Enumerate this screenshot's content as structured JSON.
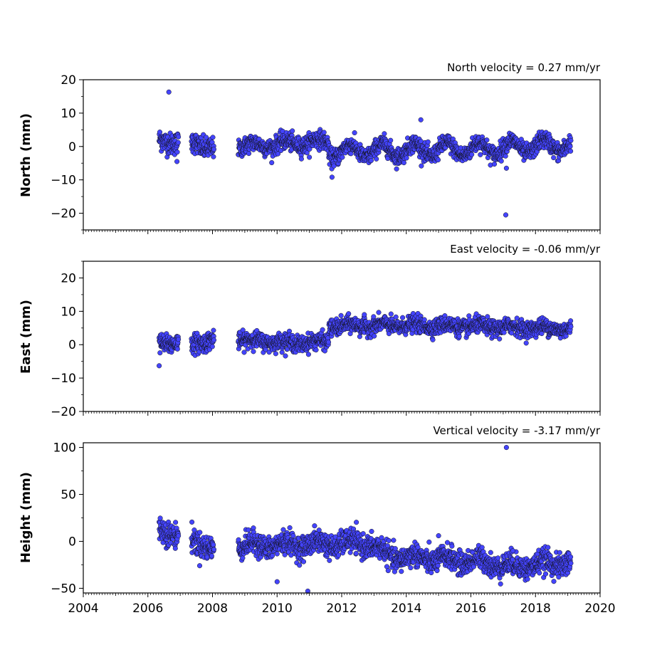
{
  "chart_data": [
    {
      "type": "scatter",
      "annotation": "North velocity = 0.27 mm/yr",
      "ylabel": "North (mm)",
      "xlim": [
        2004,
        2020
      ],
      "ylim": [
        -25,
        20
      ],
      "yticks": [
        20,
        10,
        0,
        -10,
        -20
      ],
      "ytick_labels": [
        "20",
        "10",
        "0",
        "−10",
        "−20"
      ],
      "series": [
        {
          "color": "#4444ff",
          "segments": [
            {
              "start": 2006.35,
              "end": 2006.95,
              "trend": [
                [
                  2006.35,
                  1.5
                ],
                [
                  2006.95,
                  1.5
                ]
              ],
              "amp": 0.8,
              "noise": 1.6
            },
            {
              "start": 2007.35,
              "end": 2008.05,
              "trend": [
                [
                  2007.35,
                  1.2
                ],
                [
                  2008.05,
                  -0.5
                ]
              ],
              "amp": 0.8,
              "noise": 1.6
            },
            {
              "start": 2008.8,
              "end": 2011.6,
              "trend": [
                [
                  2008.8,
                  0.0
                ],
                [
                  2011.6,
                  1.5
                ]
              ],
              "amp": 1.0,
              "noise": 1.3
            },
            {
              "start": 2011.6,
              "end": 2019.1,
              "trend": [
                [
                  2011.6,
                  -1.5
                ],
                [
                  2013.0,
                  -1.2
                ],
                [
                  2016.0,
                  -0.8
                ],
                [
                  2019.1,
                  0.5
                ]
              ],
              "amp": 2.0,
              "noise": 1.3
            }
          ],
          "outliers": [
            [
              2006.65,
              16.3
            ],
            [
              2006.9,
              -4.5
            ],
            [
              2011.7,
              -9.2
            ],
            [
              2014.45,
              8.0
            ],
            [
              2017.08,
              -20.5
            ],
            [
              2017.1,
              -6.5
            ]
          ]
        }
      ]
    },
    {
      "type": "scatter",
      "annotation": "East velocity = -0.06 mm/yr",
      "ylabel": "East (mm)",
      "xlim": [
        2004,
        2020
      ],
      "ylim": [
        -20,
        25
      ],
      "yticks": [
        20,
        10,
        0,
        -10,
        -20
      ],
      "ytick_labels": [
        "20",
        "10",
        "0",
        "−10",
        "−20"
      ],
      "series": [
        {
          "color": "#4444ff",
          "segments": [
            {
              "start": 2006.35,
              "end": 2006.95,
              "trend": [
                [
                  2006.35,
                  0.0
                ],
                [
                  2006.95,
                  1.0
                ]
              ],
              "amp": 0.6,
              "noise": 1.4
            },
            {
              "start": 2007.35,
              "end": 2008.05,
              "trend": [
                [
                  2007.35,
                  0.0
                ],
                [
                  2008.05,
                  2.0
                ]
              ],
              "amp": 0.6,
              "noise": 1.4
            },
            {
              "start": 2008.8,
              "end": 2011.6,
              "trend": [
                [
                  2008.8,
                  1.5
                ],
                [
                  2010.5,
                  0.5
                ],
                [
                  2011.6,
                  1.0
                ]
              ],
              "amp": 0.5,
              "noise": 1.2
            },
            {
              "start": 2011.6,
              "end": 2019.1,
              "trend": [
                [
                  2011.6,
                  5.5
                ],
                [
                  2014.0,
                  5.8
                ],
                [
                  2019.1,
                  4.8
                ]
              ],
              "amp": 0.6,
              "noise": 1.2
            }
          ],
          "outliers": [
            [
              2006.35,
              -6.3
            ],
            [
              2012.7,
              9.0
            ]
          ]
        }
      ]
    },
    {
      "type": "scatter",
      "annotation": "Vertical velocity = -3.17 mm/yr",
      "ylabel": "Height (mm)",
      "xlim": [
        2004,
        2020
      ],
      "ylim": [
        -55,
        105
      ],
      "yticks": [
        100,
        50,
        0,
        -50
      ],
      "ytick_labels": [
        "100",
        "50",
        "0",
        "−50"
      ],
      "xticks": [
        2004,
        2006,
        2008,
        2010,
        2012,
        2014,
        2016,
        2018,
        2020
      ],
      "xtick_labels": [
        "2004",
        "2006",
        "2008",
        "2010",
        "2012",
        "2014",
        "2016",
        "2018",
        "2020"
      ],
      "series": [
        {
          "color": "#4444ff",
          "segments": [
            {
              "start": 2006.35,
              "end": 2006.95,
              "trend": [
                [
                  2006.35,
                  12.0
                ],
                [
                  2006.95,
                  8.0
                ]
              ],
              "amp": 3.0,
              "noise": 6.5
            },
            {
              "start": 2007.35,
              "end": 2008.05,
              "trend": [
                [
                  2007.35,
                  0.0
                ],
                [
                  2008.05,
                  -6.0
                ]
              ],
              "amp": 3.0,
              "noise": 6.5
            },
            {
              "start": 2008.8,
              "end": 2019.1,
              "trend": [
                [
                  2008.8,
                  -5.0
                ],
                [
                  2012.8,
                  -2.0
                ],
                [
                  2013.5,
                  -16.0
                ],
                [
                  2016.5,
                  -22.0
                ],
                [
                  2017.2,
                  -27.0
                ],
                [
                  2019.1,
                  -22.0
                ]
              ],
              "amp": 4.0,
              "noise": 6.0
            }
          ],
          "outliers": [
            [
              2017.1,
              100.0
            ],
            [
              2010.0,
              -43.0
            ],
            [
              2010.95,
              -53.0
            ],
            [
              2015.0,
              6.0
            ],
            [
              2017.3,
              -10.0
            ]
          ]
        }
      ]
    }
  ]
}
